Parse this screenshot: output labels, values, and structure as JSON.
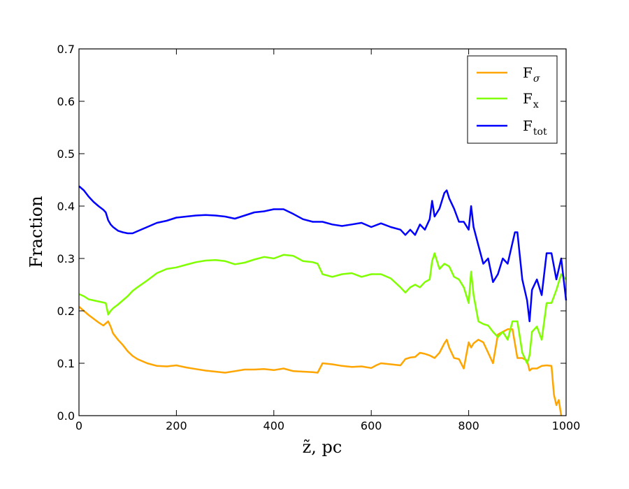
{
  "chart_data": {
    "type": "line",
    "xlabel": "z̃, pc",
    "ylabel": "Fraction",
    "xlim": [
      0,
      1000
    ],
    "ylim": [
      0,
      0.7
    ],
    "xticks": [
      "0",
      "200",
      "400",
      "600",
      "800",
      "1000"
    ],
    "yticks": [
      "0.0",
      "0.1",
      "0.2",
      "0.3",
      "0.4",
      "0.5",
      "0.6",
      "0.7"
    ],
    "grid": false,
    "legend_position": "top-right",
    "series": [
      {
        "name": "Fσ",
        "name_main": "F",
        "name_sub": "σ",
        "color": "#ffa500",
        "x": [
          0,
          10,
          20,
          30,
          40,
          50,
          55,
          60,
          65,
          70,
          80,
          90,
          100,
          110,
          120,
          140,
          160,
          180,
          200,
          220,
          240,
          260,
          280,
          300,
          320,
          340,
          360,
          380,
          400,
          420,
          440,
          460,
          480,
          490,
          500,
          520,
          540,
          560,
          580,
          600,
          610,
          620,
          640,
          660,
          670,
          680,
          690,
          700,
          710,
          720,
          730,
          740,
          750,
          755,
          760,
          770,
          780,
          790,
          800,
          805,
          810,
          820,
          830,
          840,
          850,
          860,
          870,
          880,
          890,
          900,
          910,
          920,
          925,
          930,
          940,
          950,
          960,
          970,
          975,
          980,
          985,
          990
        ],
        "y": [
          0.208,
          0.2,
          0.192,
          0.185,
          0.178,
          0.172,
          0.176,
          0.18,
          0.17,
          0.157,
          0.145,
          0.135,
          0.123,
          0.114,
          0.108,
          0.1,
          0.095,
          0.094,
          0.096,
          0.092,
          0.089,
          0.086,
          0.084,
          0.082,
          0.085,
          0.088,
          0.088,
          0.089,
          0.087,
          0.09,
          0.085,
          0.084,
          0.083,
          0.082,
          0.1,
          0.098,
          0.095,
          0.093,
          0.094,
          0.091,
          0.096,
          0.1,
          0.098,
          0.096,
          0.108,
          0.111,
          0.112,
          0.12,
          0.118,
          0.115,
          0.11,
          0.12,
          0.138,
          0.145,
          0.13,
          0.11,
          0.108,
          0.09,
          0.14,
          0.13,
          0.138,
          0.145,
          0.14,
          0.12,
          0.1,
          0.155,
          0.16,
          0.165,
          0.165,
          0.11,
          0.11,
          0.105,
          0.086,
          0.09,
          0.09,
          0.095,
          0.096,
          0.095,
          0.04,
          0.02,
          0.03,
          0.0
        ]
      },
      {
        "name": "Fx",
        "name_main": "F",
        "name_sub": "x",
        "color": "#7fff00",
        "x": [
          0,
          10,
          20,
          30,
          40,
          50,
          55,
          60,
          65,
          70,
          80,
          90,
          100,
          110,
          120,
          140,
          160,
          180,
          200,
          220,
          240,
          260,
          280,
          300,
          320,
          340,
          360,
          380,
          400,
          420,
          440,
          450,
          460,
          480,
          490,
          500,
          520,
          540,
          560,
          580,
          600,
          620,
          640,
          660,
          670,
          680,
          690,
          700,
          710,
          720,
          725,
          730,
          740,
          750,
          760,
          770,
          780,
          790,
          800,
          805,
          810,
          820,
          830,
          840,
          850,
          860,
          870,
          880,
          890,
          900,
          905,
          910,
          920,
          925,
          930,
          940,
          950,
          960,
          970,
          980,
          990,
          1000
        ],
        "y": [
          0.232,
          0.228,
          0.222,
          0.22,
          0.218,
          0.216,
          0.215,
          0.193,
          0.2,
          0.205,
          0.212,
          0.22,
          0.228,
          0.238,
          0.245,
          0.258,
          0.272,
          0.28,
          0.283,
          0.288,
          0.293,
          0.296,
          0.297,
          0.295,
          0.289,
          0.292,
          0.298,
          0.303,
          0.3,
          0.307,
          0.305,
          0.3,
          0.295,
          0.293,
          0.29,
          0.27,
          0.265,
          0.27,
          0.272,
          0.265,
          0.27,
          0.27,
          0.262,
          0.245,
          0.235,
          0.245,
          0.25,
          0.245,
          0.255,
          0.26,
          0.295,
          0.31,
          0.28,
          0.29,
          0.285,
          0.265,
          0.26,
          0.245,
          0.215,
          0.275,
          0.23,
          0.18,
          0.175,
          0.172,
          0.16,
          0.15,
          0.16,
          0.145,
          0.18,
          0.18,
          0.15,
          0.12,
          0.1,
          0.115,
          0.16,
          0.17,
          0.145,
          0.215,
          0.215,
          0.24,
          0.27,
          0.26
        ]
      },
      {
        "name": "Ftot",
        "name_main": "F",
        "name_sub": "tot",
        "color": "#0000ff",
        "x": [
          0,
          10,
          20,
          30,
          40,
          50,
          55,
          60,
          65,
          70,
          80,
          90,
          100,
          110,
          120,
          140,
          160,
          180,
          200,
          220,
          240,
          260,
          280,
          300,
          320,
          340,
          360,
          380,
          400,
          420,
          440,
          460,
          480,
          500,
          520,
          540,
          560,
          580,
          600,
          620,
          640,
          660,
          670,
          680,
          690,
          700,
          710,
          720,
          725,
          730,
          740,
          750,
          755,
          760,
          770,
          780,
          790,
          800,
          805,
          810,
          820,
          830,
          840,
          850,
          860,
          870,
          880,
          890,
          895,
          900,
          910,
          920,
          925,
          930,
          940,
          950,
          960,
          970,
          980,
          990,
          1000
        ],
        "y": [
          0.438,
          0.43,
          0.418,
          0.408,
          0.4,
          0.393,
          0.388,
          0.373,
          0.365,
          0.36,
          0.353,
          0.35,
          0.348,
          0.348,
          0.352,
          0.36,
          0.368,
          0.372,
          0.378,
          0.38,
          0.382,
          0.383,
          0.382,
          0.38,
          0.376,
          0.382,
          0.388,
          0.39,
          0.394,
          0.394,
          0.385,
          0.375,
          0.37,
          0.37,
          0.365,
          0.362,
          0.365,
          0.368,
          0.36,
          0.367,
          0.36,
          0.355,
          0.345,
          0.355,
          0.345,
          0.365,
          0.355,
          0.375,
          0.41,
          0.38,
          0.395,
          0.425,
          0.43,
          0.415,
          0.395,
          0.37,
          0.37,
          0.355,
          0.4,
          0.36,
          0.325,
          0.29,
          0.3,
          0.255,
          0.27,
          0.3,
          0.29,
          0.33,
          0.35,
          0.35,
          0.26,
          0.22,
          0.18,
          0.24,
          0.26,
          0.23,
          0.31,
          0.31,
          0.26,
          0.3,
          0.22
        ]
      }
    ]
  }
}
